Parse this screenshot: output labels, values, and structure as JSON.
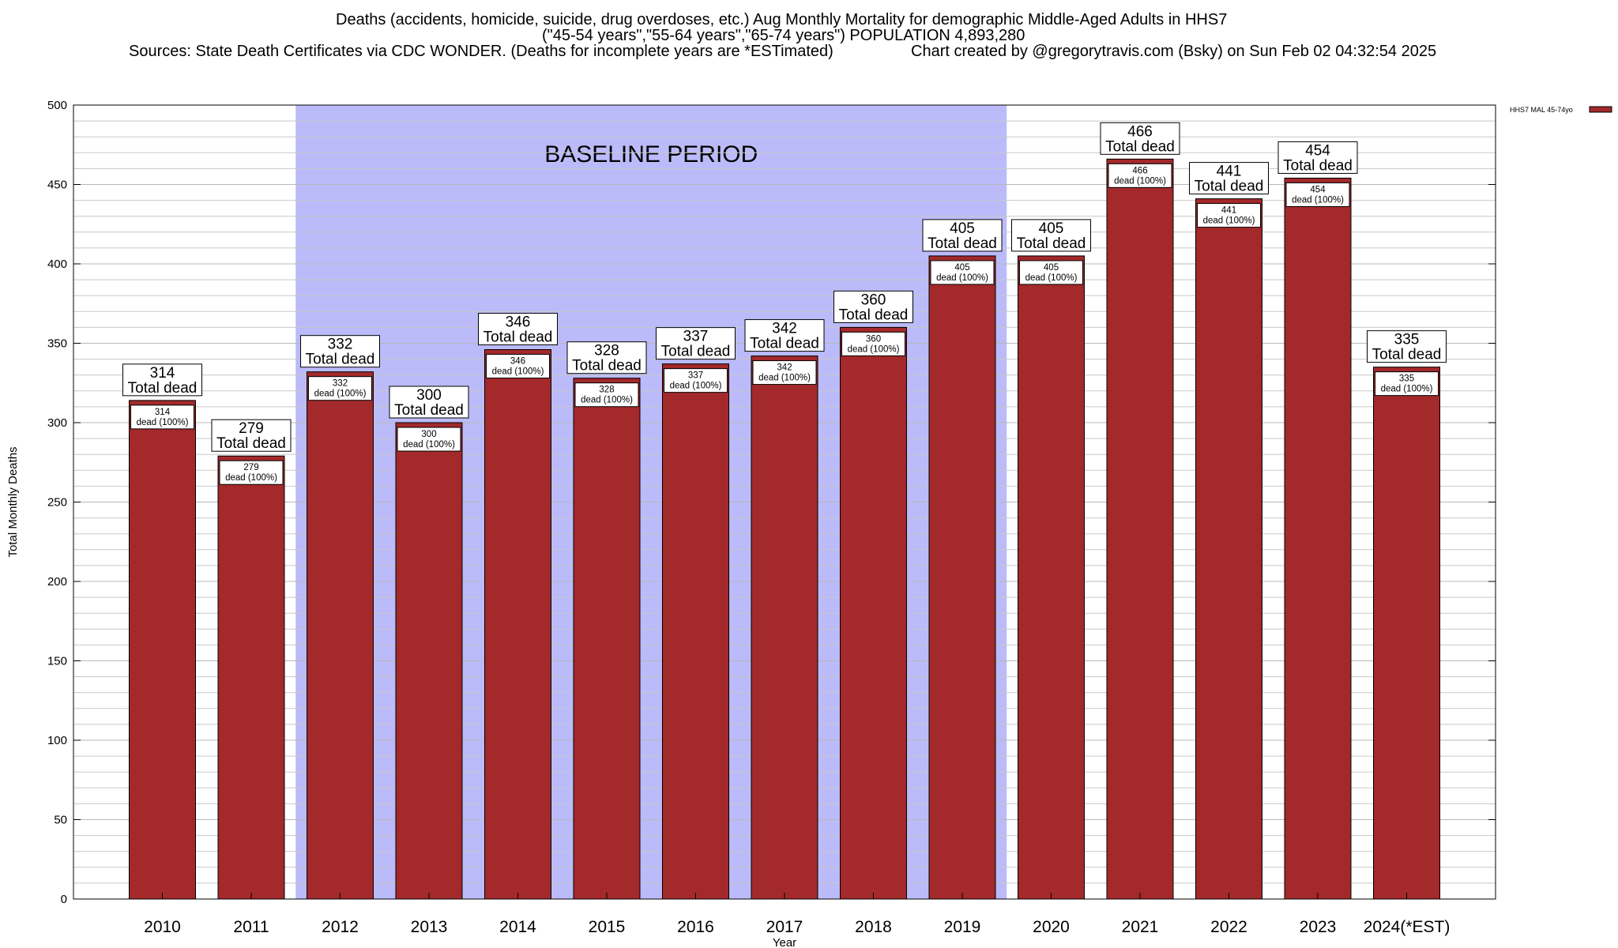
{
  "chart_data": {
    "type": "bar",
    "title": "Deaths (accidents, homicide, suicide, drug overdoses, etc.) Aug Monthly Mortality for demographic Middle-Aged Adults in HHS7",
    "subtitle": "(\"45-54 years\",\"55-64 years\",\"65-74 years\") POPULATION 4,893,280",
    "sources": "Sources: State Death Certificates via CDC WONDER. (Deaths for incomplete years are *ESTimated)",
    "credit": "Chart created by @gregorytravis.com (Bsky) on Sun Feb 02 04:32:54 2025",
    "xlabel": "Year",
    "ylabel": "Total Monthly Deaths",
    "ylim": [
      0,
      500
    ],
    "yticks": [
      0,
      50,
      100,
      150,
      200,
      250,
      300,
      350,
      400,
      450,
      500
    ],
    "grid": true,
    "legend": {
      "position": "top-right",
      "entries": [
        "HHS7 MAL 45-74yo"
      ]
    },
    "categories": [
      "2010",
      "2011",
      "2012",
      "2013",
      "2014",
      "2015",
      "2016",
      "2017",
      "2018",
      "2019",
      "2020",
      "2021",
      "2022",
      "2023",
      "2024(*EST)"
    ],
    "series": [
      {
        "name": "HHS7 MAL 45-74yo",
        "values": [
          314,
          279,
          332,
          300,
          346,
          328,
          337,
          342,
          360,
          405,
          405,
          466,
          441,
          454,
          335
        ]
      }
    ],
    "top_label_suffix": "Total dead",
    "inner_label_suffix": "dead (100%)",
    "baseline": {
      "label": "BASELINE PERIOD",
      "from": "2012",
      "to": "2019"
    },
    "colors": {
      "bar": "#a3292b",
      "baseline": "#bbbbfa",
      "grid": "#c8c8c8"
    }
  }
}
